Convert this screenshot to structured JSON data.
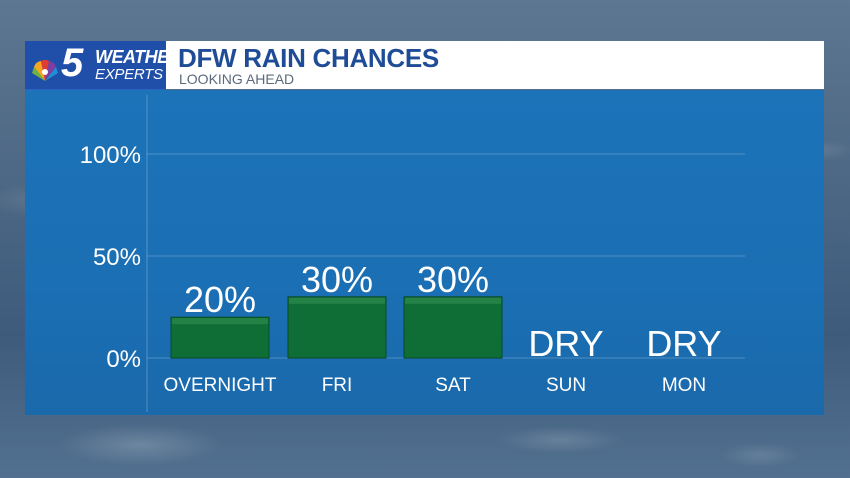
{
  "header": {
    "logo_number": "5",
    "logo_line1": "WEATHER",
    "logo_line2": "EXPERTS",
    "title": "DFW RAIN CHANCES",
    "subtitle": "LOOKING AHEAD"
  },
  "chart_data": {
    "type": "bar",
    "title": "DFW RAIN CHANCES",
    "subtitle": "LOOKING AHEAD",
    "categories": [
      "OVERNIGHT",
      "FRI",
      "SAT",
      "SUN",
      "MON"
    ],
    "values": [
      20,
      30,
      30,
      0,
      0
    ],
    "value_labels": [
      "20%",
      "30%",
      "30%",
      "DRY",
      "DRY"
    ],
    "yticks": [
      0,
      50,
      100
    ],
    "ytick_labels": [
      "0%",
      "50%",
      "100%"
    ],
    "ylim": [
      0,
      100
    ],
    "grid": true,
    "bar_color": "#0f6d36",
    "xlabel": "",
    "ylabel": ""
  }
}
